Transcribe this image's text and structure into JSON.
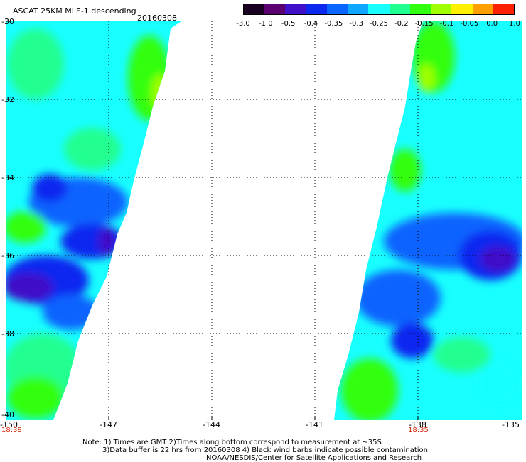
{
  "header": {
    "title": "ASCAT 25KM MLE-1 descending",
    "date": "20160308"
  },
  "colorbar": {
    "labels": [
      "-3.0",
      "-1.0",
      "-0.5",
      "-0.4",
      "-0.35",
      "-0.3",
      "-0.25",
      "-0.2",
      "-0.15",
      "-0.1",
      "-0.05",
      "0.0",
      "1.0"
    ],
    "colors": [
      "#1a0020",
      "#5a0070",
      "#4010c8",
      "#0a28f0",
      "#0a64ff",
      "#10a8ff",
      "#18ffff",
      "#20ff90",
      "#30ff10",
      "#a0ff00",
      "#fff000",
      "#ffa000",
      "#ff2000"
    ]
  },
  "map": {
    "lat_labels": [
      "-30",
      "-32",
      "-34",
      "-36",
      "-38",
      "-40"
    ],
    "lon_labels": [
      "-150",
      "-147",
      "-144",
      "-141",
      "-138",
      "-135"
    ],
    "left_swath_time": "18:38",
    "right_swath_time": "18:35"
  },
  "footer": {
    "line1": "Note: 1) Times are GMT 2)Times along bottom correspond to measurement at ~35S",
    "line2": "3)Data buffer is 22 hrs from 20160308 4) Black wind barbs indicate possible contamination",
    "line3": "NOAA/NESDIS/Center for Satellite Applications and Research"
  }
}
